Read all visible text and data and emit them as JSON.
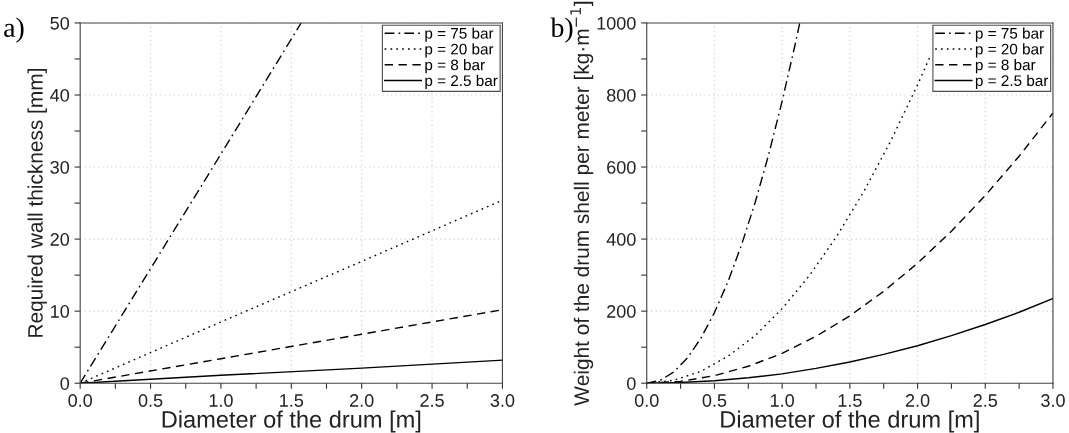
{
  "chart_data": [
    {
      "type": "line",
      "annotations": [
        "a)"
      ],
      "xlabel": "Diameter of the drum [m]",
      "ylabel": "Required wall thickness [mm]",
      "xlim": [
        0,
        3
      ],
      "ylim": [
        0,
        50
      ],
      "xticks": [
        {
          "value": 0,
          "label": "0.0"
        },
        {
          "value": 0.25,
          "label": null
        },
        {
          "value": 0.5,
          "label": "0.5"
        },
        {
          "value": 0.75,
          "label": null
        },
        {
          "value": 1,
          "label": "1.0"
        },
        {
          "value": 1.25,
          "label": null
        },
        {
          "value": 1.5,
          "label": "1.5"
        },
        {
          "value": 1.75,
          "label": null
        },
        {
          "value": 2,
          "label": "2.0"
        },
        {
          "value": 2.25,
          "label": null
        },
        {
          "value": 2.5,
          "label": "2.5"
        },
        {
          "value": 2.75,
          "label": null
        },
        {
          "value": 3,
          "label": "3.0"
        }
      ],
      "yticks": [
        0,
        {
          "value": 5,
          "label": null
        },
        10,
        {
          "value": 15,
          "label": null
        },
        20,
        {
          "value": 25,
          "label": null
        },
        30,
        {
          "value": 35,
          "label": null
        },
        40,
        {
          "value": 45,
          "label": null
        },
        50
      ],
      "grid": true,
      "legend": "top right",
      "series": [
        {
          "name": "p = 75 bar",
          "color": "#000000",
          "line_style": "dashdot",
          "x": [
            0,
            0.5,
            1.0,
            1.57
          ],
          "values": [
            0,
            15.9,
            31.8,
            50
          ]
        },
        {
          "name": "p = 20 bar",
          "color": "#000000",
          "line_style": "dotted",
          "x": [
            0,
            1,
            2,
            3
          ],
          "values": [
            0,
            8.5,
            16.9,
            25.4
          ]
        },
        {
          "name": "p = 8 bar",
          "color": "#000000",
          "line_style": "dashed",
          "x": [
            0,
            1,
            2,
            3
          ],
          "values": [
            0,
            3.4,
            6.8,
            10.2
          ]
        },
        {
          "name": "p = 2.5 bar",
          "color": "#000000",
          "line_style": "solid",
          "x": [
            0,
            1,
            2,
            3
          ],
          "values": [
            0,
            1.1,
            2.1,
            3.2
          ]
        }
      ]
    },
    {
      "type": "line",
      "annotations": [
        "b)"
      ],
      "xlabel": "Diameter of the drum [m]",
      "ylabel": "Weight of the drum shell per meter [kg·m$^{−1}$]",
      "xlim": [
        0,
        3
      ],
      "ylim": [
        0,
        1000
      ],
      "xticks": [
        {
          "value": 0,
          "label": "0.0"
        },
        {
          "value": 0.25,
          "label": null
        },
        {
          "value": 0.5,
          "label": "0.5"
        },
        {
          "value": 0.75,
          "label": null
        },
        {
          "value": 1,
          "label": "1.0"
        },
        {
          "value": 1.25,
          "label": null
        },
        {
          "value": 1.5,
          "label": "1.5"
        },
        {
          "value": 1.75,
          "label": null
        },
        {
          "value": 2,
          "label": "2.0"
        },
        {
          "value": 2.25,
          "label": null
        },
        {
          "value": 2.5,
          "label": "2.5"
        },
        {
          "value": 2.75,
          "label": null
        },
        {
          "value": 3,
          "label": "3.0"
        }
      ],
      "yticks": [
        0,
        {
          "value": 100,
          "label": null
        },
        200,
        {
          "value": 300,
          "label": null
        },
        400,
        {
          "value": 500,
          "label": null
        },
        600,
        {
          "value": 700,
          "label": null
        },
        800,
        {
          "value": 900,
          "label": null
        },
        1000
      ],
      "grid": true,
      "legend": "top right",
      "series": [
        {
          "name": "p = 75 bar",
          "color": "#000000",
          "line_style": "dashdot",
          "x": [
            0,
            0.1,
            0.2,
            0.3,
            0.4,
            0.5,
            0.6,
            0.7,
            0.8,
            0.9,
            1.0,
            1.1,
            1.13
          ],
          "values": [
            0,
            8,
            31,
            70,
            125,
            196,
            282,
            384,
            501,
            634,
            783,
            947,
            1000
          ]
        },
        {
          "name": "p = 20 bar",
          "color": "#000000",
          "line_style": "dotted",
          "x": [
            0,
            0.2,
            0.4,
            0.6,
            0.8,
            1.0,
            1.2,
            1.4,
            1.6,
            1.8,
            2.0,
            2.1
          ],
          "values": [
            0,
            8,
            33,
            75,
            132,
            207,
            298,
            406,
            530,
            671,
            828,
            913
          ]
        },
        {
          "name": "p = 8 bar",
          "color": "#000000",
          "line_style": "dashed",
          "x": [
            0,
            0.25,
            0.5,
            0.75,
            1.0,
            1.25,
            1.5,
            1.75,
            2.0,
            2.25,
            2.5,
            2.75,
            3.0
          ],
          "values": [
            0,
            5,
            21,
            47,
            83,
            130,
            187,
            255,
            333,
            422,
            521,
            630,
            750
          ]
        },
        {
          "name": "p = 2.5 bar",
          "color": "#000000",
          "line_style": "solid",
          "x": [
            0,
            0.25,
            0.5,
            0.75,
            1.0,
            1.25,
            1.5,
            1.75,
            2.0,
            2.25,
            2.5,
            2.75,
            3.0
          ],
          "values": [
            0,
            2,
            7,
            15,
            26,
            41,
            59,
            80,
            104,
            132,
            163,
            197,
            235
          ]
        }
      ]
    }
  ]
}
